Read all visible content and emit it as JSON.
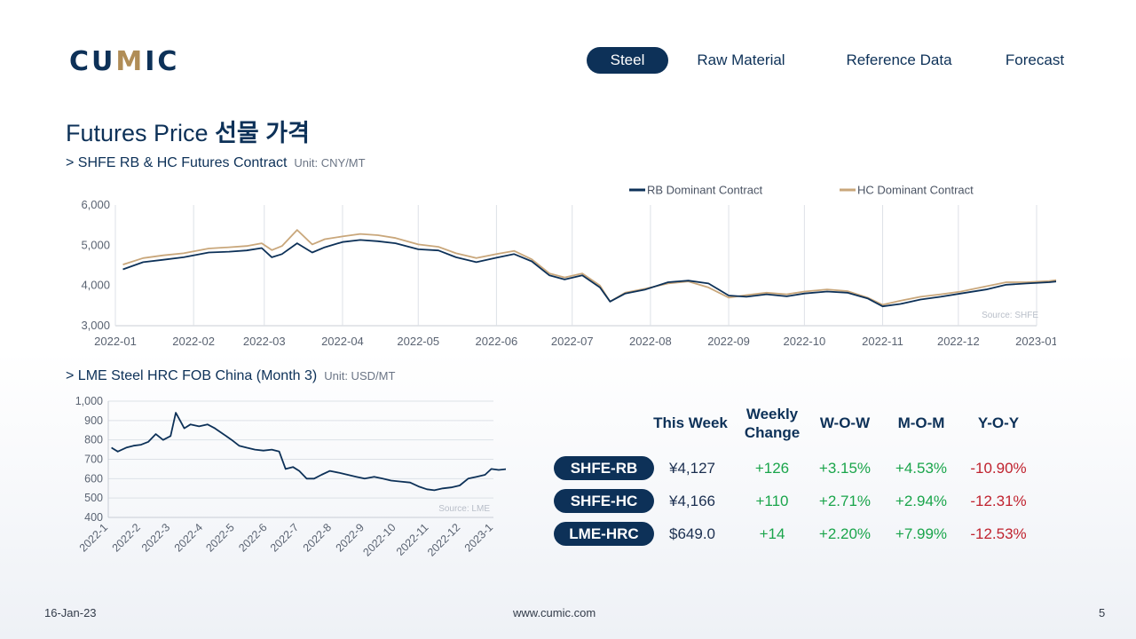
{
  "logo": {
    "text_a": "CU",
    "text_accent": "M",
    "text_b": "IC"
  },
  "nav": {
    "tabs": [
      {
        "label": "Steel",
        "active": true
      },
      {
        "label": "Raw Material",
        "active": false
      },
      {
        "label": "Reference Data",
        "active": false
      },
      {
        "label": "Forecast",
        "active": false
      }
    ]
  },
  "page": {
    "title_en": "Futures Price ",
    "title_ko": "선물 가격"
  },
  "sections": {
    "shfe": {
      "title": "> SHFE RB & HC Futures Contract",
      "unit": "Unit: CNY/MT"
    },
    "lme": {
      "title": "> LME Steel HRC FOB China (Month 3)",
      "unit": "Unit: USD/MT"
    }
  },
  "colors": {
    "rb": "#0d3158",
    "hc": "#c9a77b",
    "accent": "#0d3158",
    "up": "#1aa54b",
    "down": "#c0232f"
  },
  "chart_data": [
    {
      "type": "line",
      "x_format": "YYYY-MM",
      "x_ticks": [
        "2022-01",
        "2022-02",
        "2022-03",
        "2022-04",
        "2022-05",
        "2022-06",
        "2022-07",
        "2022-08",
        "2022-09",
        "2022-10",
        "2022-11",
        "2022-12",
        "2023-01"
      ],
      "ylim": [
        3000,
        6000
      ],
      "y_ticks": [
        "3,000",
        "4,000",
        "5,000",
        "6,000"
      ],
      "grid": "vertical",
      "legend": "top-right",
      "source": "Source:  SHFE",
      "series": [
        {
          "name": "RB Dominant Contract",
          "points": [
            [
              "2022-01-04",
              4400
            ],
            [
              "2022-01-12",
              4580
            ],
            [
              "2022-01-20",
              4640
            ],
            [
              "2022-01-28",
              4700
            ],
            [
              "2022-02-07",
              4820
            ],
            [
              "2022-02-15",
              4840
            ],
            [
              "2022-02-22",
              4870
            ],
            [
              "2022-02-28",
              4930
            ],
            [
              "2022-03-04",
              4700
            ],
            [
              "2022-03-08",
              4780
            ],
            [
              "2022-03-14",
              5050
            ],
            [
              "2022-03-20",
              4820
            ],
            [
              "2022-03-25",
              4950
            ],
            [
              "2022-04-01",
              5080
            ],
            [
              "2022-04-08",
              5130
            ],
            [
              "2022-04-15",
              5100
            ],
            [
              "2022-04-22",
              5050
            ],
            [
              "2022-05-01",
              4900
            ],
            [
              "2022-05-09",
              4870
            ],
            [
              "2022-05-16",
              4700
            ],
            [
              "2022-05-24",
              4580
            ],
            [
              "2022-06-01",
              4690
            ],
            [
              "2022-06-08",
              4780
            ],
            [
              "2022-06-15",
              4600
            ],
            [
              "2022-06-22",
              4250
            ],
            [
              "2022-06-28",
              4150
            ],
            [
              "2022-07-05",
              4250
            ],
            [
              "2022-07-12",
              3950
            ],
            [
              "2022-07-16",
              3600
            ],
            [
              "2022-07-22",
              3800
            ],
            [
              "2022-07-30",
              3900
            ],
            [
              "2022-08-08",
              4080
            ],
            [
              "2022-08-16",
              4120
            ],
            [
              "2022-08-24",
              4050
            ],
            [
              "2022-09-01",
              3750
            ],
            [
              "2022-09-08",
              3720
            ],
            [
              "2022-09-16",
              3780
            ],
            [
              "2022-09-24",
              3730
            ],
            [
              "2022-10-01",
              3800
            ],
            [
              "2022-10-10",
              3850
            ],
            [
              "2022-10-18",
              3820
            ],
            [
              "2022-10-26",
              3680
            ],
            [
              "2022-11-01",
              3480
            ],
            [
              "2022-11-08",
              3540
            ],
            [
              "2022-11-16",
              3650
            ],
            [
              "2022-11-24",
              3720
            ],
            [
              "2022-12-02",
              3800
            ],
            [
              "2022-12-12",
              3900
            ],
            [
              "2022-12-20",
              4020
            ],
            [
              "2022-12-28",
              4050
            ],
            [
              "2023-01-06",
              4080
            ],
            [
              "2023-01-13",
              4127
            ]
          ]
        },
        {
          "name": "HC Dominant Contract",
          "points": [
            [
              "2022-01-04",
              4520
            ],
            [
              "2022-01-12",
              4680
            ],
            [
              "2022-01-20",
              4750
            ],
            [
              "2022-01-28",
              4800
            ],
            [
              "2022-02-07",
              4920
            ],
            [
              "2022-02-15",
              4950
            ],
            [
              "2022-02-22",
              4980
            ],
            [
              "2022-02-28",
              5050
            ],
            [
              "2022-03-04",
              4880
            ],
            [
              "2022-03-08",
              4980
            ],
            [
              "2022-03-14",
              5380
            ],
            [
              "2022-03-20",
              5020
            ],
            [
              "2022-03-25",
              5150
            ],
            [
              "2022-04-01",
              5220
            ],
            [
              "2022-04-08",
              5280
            ],
            [
              "2022-04-15",
              5250
            ],
            [
              "2022-04-22",
              5180
            ],
            [
              "2022-05-01",
              5020
            ],
            [
              "2022-05-09",
              4960
            ],
            [
              "2022-05-16",
              4800
            ],
            [
              "2022-05-24",
              4680
            ],
            [
              "2022-06-01",
              4780
            ],
            [
              "2022-06-08",
              4860
            ],
            [
              "2022-06-15",
              4650
            ],
            [
              "2022-06-22",
              4300
            ],
            [
              "2022-06-28",
              4200
            ],
            [
              "2022-07-05",
              4300
            ],
            [
              "2022-07-12",
              4000
            ],
            [
              "2022-07-16",
              3600
            ],
            [
              "2022-07-22",
              3820
            ],
            [
              "2022-07-30",
              3920
            ],
            [
              "2022-08-08",
              4050
            ],
            [
              "2022-08-16",
              4100
            ],
            [
              "2022-08-24",
              3950
            ],
            [
              "2022-09-01",
              3700
            ],
            [
              "2022-09-08",
              3760
            ],
            [
              "2022-09-16",
              3820
            ],
            [
              "2022-09-24",
              3780
            ],
            [
              "2022-10-01",
              3850
            ],
            [
              "2022-10-10",
              3900
            ],
            [
              "2022-10-18",
              3860
            ],
            [
              "2022-10-26",
              3700
            ],
            [
              "2022-11-01",
              3520
            ],
            [
              "2022-11-08",
              3620
            ],
            [
              "2022-11-16",
              3720
            ],
            [
              "2022-11-24",
              3780
            ],
            [
              "2022-12-02",
              3850
            ],
            [
              "2022-12-12",
              3980
            ],
            [
              "2022-12-20",
              4080
            ],
            [
              "2022-12-28",
              4080
            ],
            [
              "2023-01-06",
              4110
            ],
            [
              "2023-01-13",
              4166
            ]
          ]
        }
      ]
    },
    {
      "type": "line",
      "x_format": "YYYY-M",
      "x_ticks": [
        "2022-1",
        "2022-2",
        "2022-3",
        "2022-4",
        "2022-5",
        "2022-6",
        "2022-7",
        "2022-8",
        "2022-9",
        "2022-10",
        "2022-11",
        "2022-12",
        "2023-1"
      ],
      "ylim": [
        400,
        1000
      ],
      "y_ticks": [
        "400",
        "500",
        "600",
        "700",
        "800",
        "900",
        "1,000"
      ],
      "grid": "horizontal",
      "source": "Source:  LME",
      "series": [
        {
          "name": "",
          "points": [
            [
              "2022-01-04",
              760
            ],
            [
              "2022-01-10",
              740
            ],
            [
              "2022-01-18",
              760
            ],
            [
              "2022-01-25",
              770
            ],
            [
              "2022-02-01",
              775
            ],
            [
              "2022-02-08",
              790
            ],
            [
              "2022-02-15",
              830
            ],
            [
              "2022-02-22",
              800
            ],
            [
              "2022-03-01",
              820
            ],
            [
              "2022-03-06",
              940
            ],
            [
              "2022-03-10",
              900
            ],
            [
              "2022-03-14",
              860
            ],
            [
              "2022-03-20",
              880
            ],
            [
              "2022-03-28",
              870
            ],
            [
              "2022-04-05",
              880
            ],
            [
              "2022-04-12",
              860
            ],
            [
              "2022-04-20",
              830
            ],
            [
              "2022-04-28",
              800
            ],
            [
              "2022-05-05",
              770
            ],
            [
              "2022-05-12",
              760
            ],
            [
              "2022-05-20",
              750
            ],
            [
              "2022-05-28",
              745
            ],
            [
              "2022-06-05",
              750
            ],
            [
              "2022-06-12",
              740
            ],
            [
              "2022-06-18",
              650
            ],
            [
              "2022-06-25",
              660
            ],
            [
              "2022-07-01",
              640
            ],
            [
              "2022-07-08",
              600
            ],
            [
              "2022-07-15",
              600
            ],
            [
              "2022-07-22",
              620
            ],
            [
              "2022-07-30",
              640
            ],
            [
              "2022-08-08",
              630
            ],
            [
              "2022-08-16",
              620
            ],
            [
              "2022-08-24",
              610
            ],
            [
              "2022-09-01",
              600
            ],
            [
              "2022-09-10",
              610
            ],
            [
              "2022-09-18",
              600
            ],
            [
              "2022-09-26",
              590
            ],
            [
              "2022-10-05",
              585
            ],
            [
              "2022-10-14",
              580
            ],
            [
              "2022-10-22",
              560
            ],
            [
              "2022-10-30",
              545
            ],
            [
              "2022-11-06",
              540
            ],
            [
              "2022-11-14",
              550
            ],
            [
              "2022-11-22",
              555
            ],
            [
              "2022-11-30",
              565
            ],
            [
              "2022-12-08",
              600
            ],
            [
              "2022-12-16",
              610
            ],
            [
              "2022-12-24",
              620
            ],
            [
              "2022-12-30",
              650
            ],
            [
              "2023-01-06",
              645
            ],
            [
              "2023-01-13",
              649
            ]
          ]
        }
      ]
    }
  ],
  "table": {
    "headers": {
      "this_week": "This Week",
      "weekly_1": "Weekly",
      "weekly_2": "Change",
      "wow": "W-O-W",
      "mom": "M-O-M",
      "yoy": "Y-O-Y"
    },
    "rows": [
      {
        "label": "SHFE-RB",
        "price": "¥4,127",
        "change": "+126",
        "wow": "+3.15%",
        "mom": "+4.53%",
        "yoy": "-10.90%"
      },
      {
        "label": "SHFE-HC",
        "price": "¥4,166",
        "change": "+110",
        "wow": "+2.71%",
        "mom": "+2.94%",
        "yoy": "-12.31%"
      },
      {
        "label": "LME-HRC",
        "price": "$649.0",
        "change": "+14",
        "wow": "+2.20%",
        "mom": "+7.99%",
        "yoy": "-12.53%"
      }
    ]
  },
  "footer": {
    "date": "16-Jan-23",
    "url": "www.cumic.com",
    "page": "5"
  }
}
